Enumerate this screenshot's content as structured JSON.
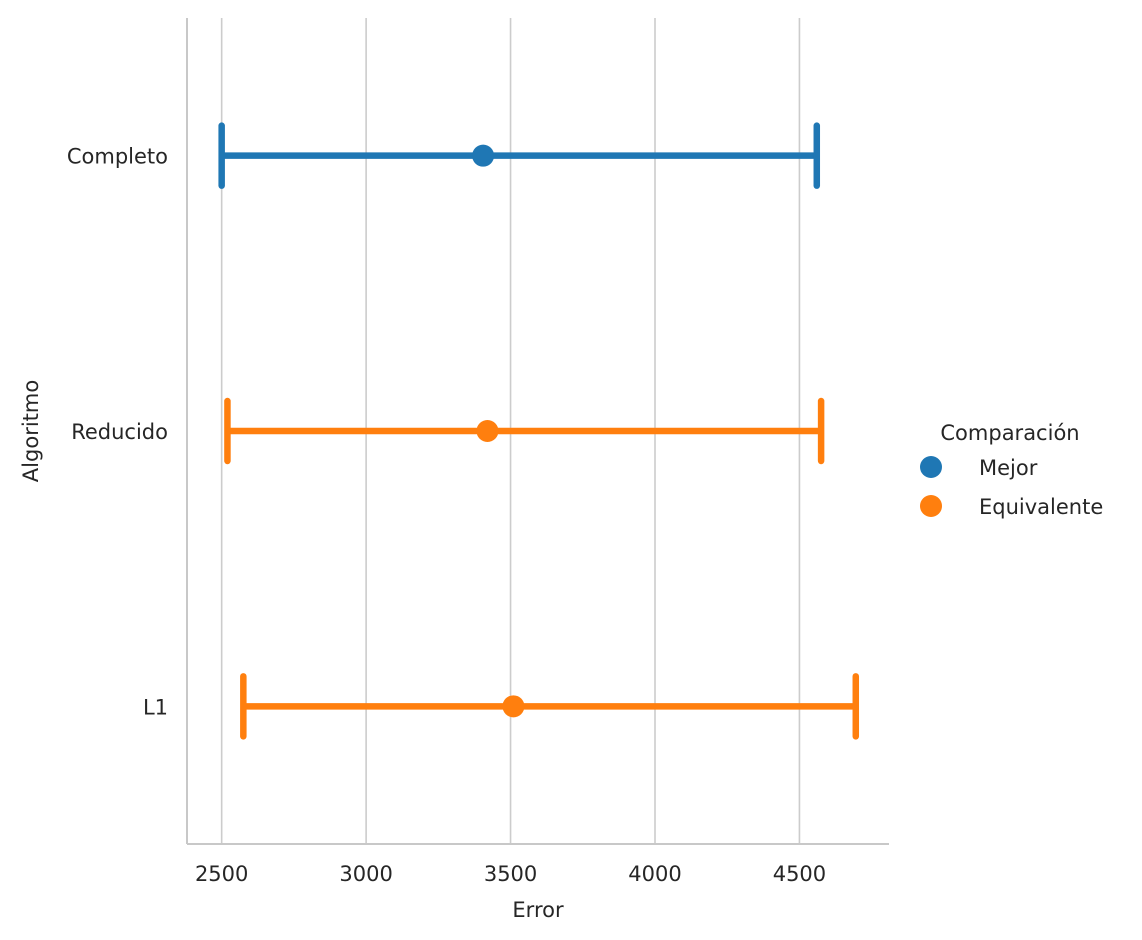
{
  "chart_data": {
    "type": "point",
    "orientation": "horizontal",
    "title": "",
    "xlabel": "Error",
    "ylabel": "Algoritmo",
    "xlim": [
      2380,
      4810
    ],
    "xticks": [
      2500,
      3000,
      3500,
      4000,
      4500
    ],
    "xtick_labels": [
      "2500",
      "3000",
      "3500",
      "4000",
      "4500"
    ],
    "grid": "vertical",
    "categories": [
      "Completo",
      "Reducido",
      "L1"
    ],
    "points": [
      {
        "category": "Completo",
        "group": "Mejor",
        "value": 3405,
        "ci_low": 2500,
        "ci_high": 4560
      },
      {
        "category": "Reducido",
        "group": "Equivalente",
        "value": 3420,
        "ci_low": 2520,
        "ci_high": 4575
      },
      {
        "category": "L1",
        "group": "Equivalente",
        "value": 3510,
        "ci_low": 2575,
        "ci_high": 4695
      }
    ],
    "legend": {
      "title": "Comparación",
      "placement": "right",
      "entries": [
        {
          "label": "Mejor",
          "color": "#1f77b4"
        },
        {
          "label": "Equivalente",
          "color": "#ff7f0e"
        }
      ]
    }
  }
}
